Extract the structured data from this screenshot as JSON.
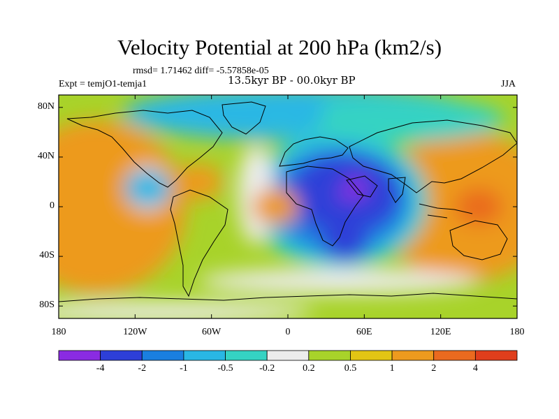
{
  "title": "Velocity Potential at 200 hPa (km2/s)",
  "stats_line": "rmsd= 1.71462 diff= -5.57858e-05",
  "period_line": "13.5kyr BP - 00.0kyr BP",
  "experiment_label": "Expt = temjO1-temja1",
  "season_label": "JJA",
  "map": {
    "lat_ticks": [
      "80N",
      "40N",
      "0",
      "40S",
      "80S"
    ],
    "lon_ticks": [
      "180",
      "120W",
      "60W",
      "0",
      "60E",
      "120E",
      "180"
    ],
    "lat_tick_values": [
      80,
      40,
      0,
      -40,
      -80
    ],
    "lon_tick_values": [
      -180,
      -120,
      -60,
      0,
      60,
      120,
      180
    ]
  },
  "colorbar": {
    "colors": [
      "#8a2be2",
      "#2d3fd8",
      "#1a7fe0",
      "#29b7e4",
      "#35d3c3",
      "#ececec",
      "#a8d32a",
      "#e2c514",
      "#ed9a1e",
      "#ea6a1f",
      "#e03e1c"
    ],
    "labels": [
      "-4",
      "-2",
      "-1",
      "-0.5",
      "-0.2",
      "0.2",
      "0.5",
      "1",
      "2",
      "4"
    ]
  },
  "field_centers": [
    {
      "lon": 50,
      "lat": 15,
      "value": -4.5,
      "name": "NE Africa / Arabia minimum"
    },
    {
      "lon": 30,
      "lat": 25,
      "value": -3,
      "name": "Africa negative"
    },
    {
      "lon": 45,
      "lat": -30,
      "value": -3,
      "name": "S Indian Ocean negative"
    },
    {
      "lon": 150,
      "lat": 0,
      "value": 3,
      "name": "Maritime continent maximum"
    },
    {
      "lon": -165,
      "lat": -10,
      "value": 1.8,
      "name": "Central Pacific positive"
    },
    {
      "lon": -70,
      "lat": 20,
      "value": 1.5,
      "name": "Caribbean positive"
    },
    {
      "lon": -10,
      "lat": 0,
      "value": 1.2,
      "name": "Gulf of Guinea positive"
    },
    {
      "lon": -110,
      "lat": 15,
      "value": -0.6,
      "name": "E Pacific negative"
    },
    {
      "lon": 10,
      "lat": 75,
      "value": -0.8,
      "name": "Arctic negative"
    }
  ]
}
